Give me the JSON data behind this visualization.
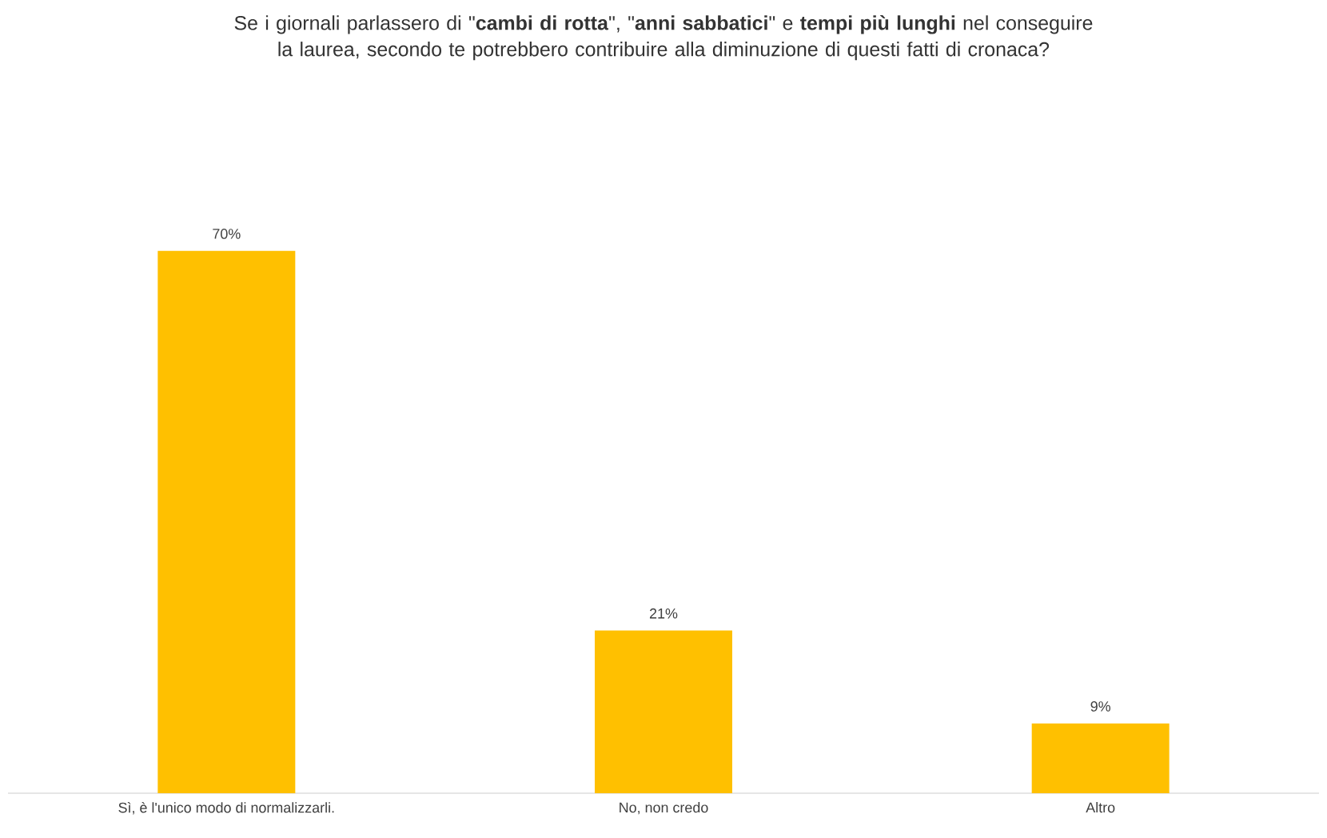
{
  "chart_data": {
    "type": "bar",
    "title": "Se i giornali parlassero di \"**cambi di rotta**\", \"**anni sabbatici**\" e **tempi più lunghi** nel conseguire la laurea, secondo te potrebbero contribuire alla diminuzione di questi fatti di cronaca?",
    "categories": [
      "Sì, è l'unico modo di normalizzarli.",
      "No, non credo",
      "Altro"
    ],
    "values": [
      70,
      21,
      9
    ],
    "value_labels": [
      "70%",
      "21%",
      "9%"
    ],
    "color": "#ffc000"
  }
}
